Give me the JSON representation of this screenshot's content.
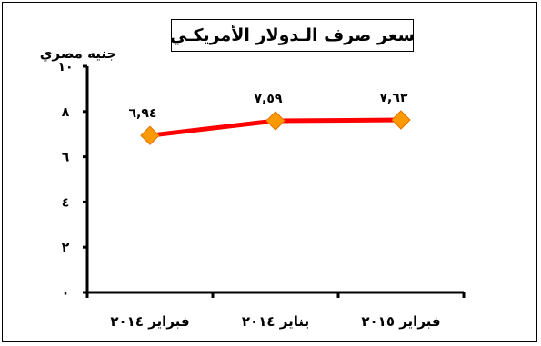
{
  "chart_data": {
    "type": "line",
    "title": "سعر صرف الـدولار الأمريكـي",
    "xlabel": "",
    "ylabel": "جنيه مصري",
    "categories": [
      "فبراير ٢٠١٤",
      "يناير ٢٠١٤",
      "فبراير ٢٠١٥"
    ],
    "series": [
      {
        "values": [
          6.94,
          7.59,
          7.63
        ]
      }
    ],
    "data_labels": [
      "٦,٩٤",
      "٧,٥٩",
      "٧,٦٣"
    ],
    "y_ticks": [
      0,
      2,
      4,
      6,
      8,
      10
    ],
    "y_tick_labels": [
      "٠",
      "٢",
      "٤",
      "٦",
      "٨",
      "١٠"
    ],
    "ylim": [
      0,
      10
    ],
    "grid": false,
    "legend": "none",
    "colors": {
      "line": "#ff0000",
      "marker": "#ff9900",
      "axis": "#000000"
    }
  }
}
